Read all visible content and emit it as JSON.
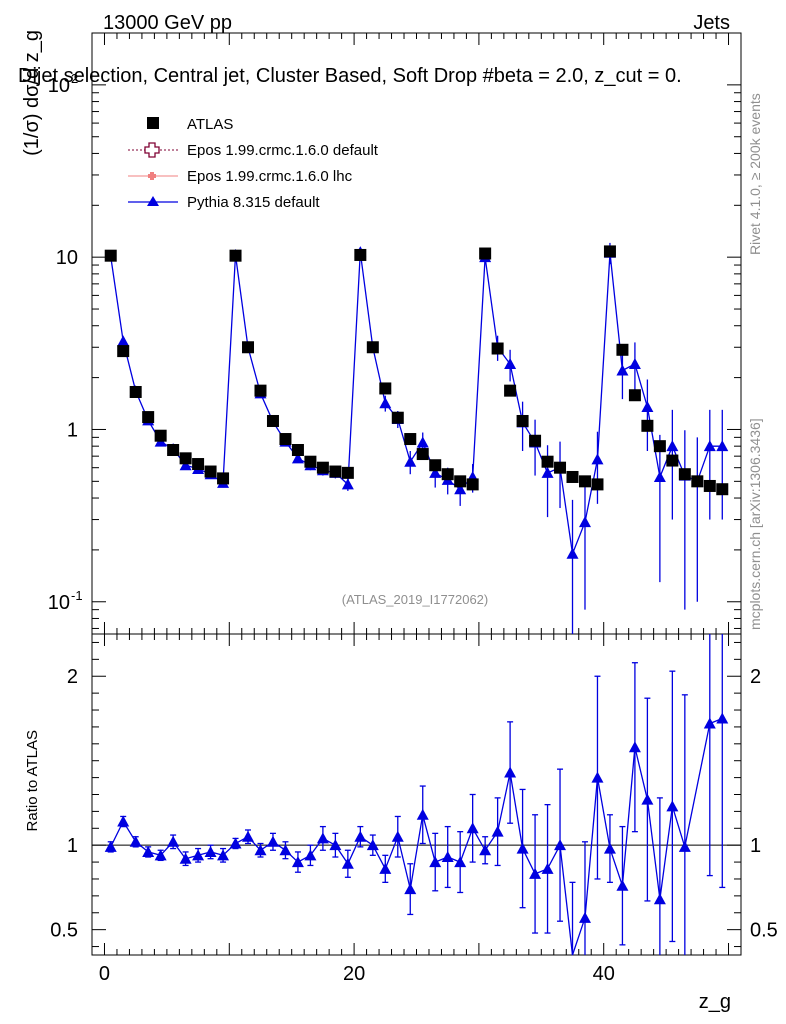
{
  "header": {
    "left": "13000 GeV pp",
    "right": "Jets",
    "title": "Dijet selection, Central jet, Cluster Based, Soft Drop #beta = 2.0, z_cut = 0.",
    "side_rivet": "Rivet 4.1.0, ≥ 200k events",
    "side_mcplots": "mcplots.cern.ch [arXiv:1306.3436]",
    "analysis_label": "(ATLAS_2019_I1772062)"
  },
  "legend": [
    {
      "label": "ATLAS",
      "marker": "square",
      "color": "#000000"
    },
    {
      "label": "Epos 1.99.crmc.1.6.0 default",
      "marker": "open-cross",
      "color": "#7f0033"
    },
    {
      "label": "Epos 1.99.crmc.1.6.0 lhc",
      "marker": "cross-filled",
      "color": "#f08080"
    },
    {
      "label": "Pythia 8.315 default",
      "marker": "triangle",
      "color": "#0000e0"
    }
  ],
  "chart_data": [
    {
      "type": "scatter",
      "panel": "main",
      "ylabel": "(1/σ) dσ/d z_g",
      "yscale": "log",
      "ylim": [
        0.065,
        200
      ],
      "xlim": [
        -1,
        51
      ],
      "y_ticks": [
        "10^-1",
        "1",
        "10",
        "10^2"
      ],
      "series": [
        {
          "name": "ATLAS",
          "x": [
            0.5,
            1.5,
            2.5,
            3.5,
            4.5,
            5.5,
            6.5,
            7.5,
            8.5,
            9.5,
            10.5,
            11.5,
            12.5,
            13.5,
            14.5,
            15.5,
            16.5,
            17.5,
            18.5,
            19.5,
            20.5,
            21.5,
            22.5,
            23.5,
            24.5,
            25.5,
            26.5,
            27.5,
            28.5,
            29.5,
            30.5,
            31.5,
            32.5,
            33.5,
            34.5,
            35.5,
            36.5,
            37.5,
            38.5,
            39.5,
            40.5,
            41.5,
            42.5,
            43.5,
            44.5,
            45.5,
            46.5,
            47.5,
            48.5,
            49.5
          ],
          "y": [
            10.2,
            2.85,
            1.65,
            1.18,
            0.92,
            0.76,
            0.68,
            0.63,
            0.57,
            0.52,
            10.2,
            3.0,
            1.68,
            1.12,
            0.88,
            0.76,
            0.65,
            0.6,
            0.57,
            0.56,
            10.3,
            3.0,
            1.73,
            1.17,
            0.88,
            0.72,
            0.62,
            0.55,
            0.5,
            0.48,
            10.5,
            2.95,
            1.68,
            1.12,
            0.86,
            0.65,
            0.6,
            0.53,
            0.5,
            0.48,
            10.8,
            2.9,
            1.58,
            1.05,
            0.8,
            0.66,
            0.55,
            0.5,
            0.47,
            0.45
          ]
        },
        {
          "name": "Pythia 8.315 default",
          "x": [
            0.5,
            1.5,
            2.5,
            3.5,
            4.5,
            5.5,
            6.5,
            7.5,
            8.5,
            9.5,
            10.5,
            11.5,
            12.5,
            13.5,
            14.5,
            15.5,
            16.5,
            17.5,
            18.5,
            19.5,
            20.5,
            21.5,
            22.5,
            23.5,
            24.5,
            25.5,
            26.5,
            27.5,
            28.5,
            29.5,
            30.5,
            31.5,
            32.5,
            33.5,
            34.5,
            35.5,
            36.5,
            37.5,
            38.5,
            39.5,
            40.5,
            41.5,
            42.5,
            43.5,
            44.5,
            45.5,
            46.5,
            47.5,
            48.5,
            49.5
          ],
          "y": [
            10.1,
            3.25,
            1.67,
            1.13,
            0.85,
            0.77,
            0.62,
            0.59,
            0.55,
            0.49,
            10.3,
            3.0,
            1.62,
            1.11,
            0.85,
            0.68,
            0.62,
            0.58,
            0.56,
            0.48,
            10.7,
            3.0,
            1.42,
            1.15,
            0.65,
            0.84,
            0.56,
            0.51,
            0.45,
            0.53,
            10.0,
            3.0,
            2.4,
            1.1,
            0.84,
            0.56,
            0.6,
            0.19,
            0.29,
            0.67,
            10.6,
            2.2,
            2.4,
            1.35,
            0.53,
            0.8,
            0.54,
            0.5,
            0.8,
            0.8
          ],
          "yerr": [
            0.25,
            0.08,
            0.05,
            0.04,
            0.03,
            0.03,
            0.03,
            0.03,
            0.03,
            0.03,
            0.25,
            0.1,
            0.06,
            0.05,
            0.04,
            0.04,
            0.04,
            0.04,
            0.04,
            0.04,
            0.6,
            0.15,
            0.15,
            0.13,
            0.1,
            0.12,
            0.1,
            0.09,
            0.09,
            0.1,
            0.7,
            0.5,
            0.5,
            0.35,
            0.3,
            0.25,
            0.25,
            0.2,
            0.2,
            0.3,
            1.5,
            0.7,
            0.8,
            0.6,
            0.4,
            0.5,
            0.45,
            0.4,
            0.5,
            0.5
          ]
        }
      ]
    },
    {
      "type": "scatter",
      "panel": "ratio",
      "ylabel": "Ratio to ATLAS",
      "xlabel": "z_g",
      "ylim": [
        0.35,
        2.25
      ],
      "xlim": [
        -1,
        51
      ],
      "y_ticks": [
        "0.5",
        "1",
        "2"
      ],
      "x_ticks": [
        "0",
        "20",
        "40"
      ],
      "series": [
        {
          "name": "Pythia 8.315 default",
          "x": [
            0.5,
            1.5,
            2.5,
            3.5,
            4.5,
            5.5,
            6.5,
            7.5,
            8.5,
            9.5,
            10.5,
            11.5,
            12.5,
            13.5,
            14.5,
            15.5,
            16.5,
            17.5,
            18.5,
            19.5,
            20.5,
            21.5,
            22.5,
            23.5,
            24.5,
            25.5,
            26.5,
            27.5,
            28.5,
            29.5,
            30.5,
            31.5,
            32.5,
            33.5,
            34.5,
            35.5,
            36.5,
            37.5,
            38.5,
            39.5,
            40.5,
            41.5,
            42.5,
            43.5,
            44.5,
            45.5,
            46.5,
            47.5,
            48.5,
            49.5
          ],
          "y": [
            0.99,
            1.14,
            1.02,
            0.96,
            0.94,
            1.02,
            0.92,
            0.94,
            0.96,
            0.94,
            1.01,
            1.05,
            0.97,
            1.02,
            0.97,
            0.9,
            0.94,
            1.04,
            1.0,
            0.89,
            1.05,
            1.0,
            0.86,
            1.05,
            0.74,
            1.18,
            0.9,
            0.93,
            0.9,
            1.1,
            0.97,
            1.08,
            1.43,
            0.98,
            0.83,
            0.86,
            1.0,
            0.33,
            0.57,
            1.4,
            0.98,
            0.76,
            1.58,
            1.27,
            0.68,
            1.23,
            0.99,
            null,
            1.72,
            1.75
          ],
          "yerr": [
            0.03,
            0.03,
            0.03,
            0.03,
            0.03,
            0.04,
            0.04,
            0.04,
            0.04,
            0.04,
            0.03,
            0.04,
            0.04,
            0.05,
            0.05,
            0.06,
            0.06,
            0.07,
            0.07,
            0.08,
            0.06,
            0.06,
            0.08,
            0.12,
            0.15,
            0.17,
            0.17,
            0.18,
            0.18,
            0.2,
            0.08,
            0.2,
            0.3,
            0.35,
            0.35,
            0.38,
            0.45,
            0.45,
            0.45,
            0.6,
            0.2,
            0.35,
            0.5,
            0.6,
            0.6,
            0.8,
            0.9,
            null,
            0.9,
            1.0
          ]
        }
      ]
    }
  ]
}
